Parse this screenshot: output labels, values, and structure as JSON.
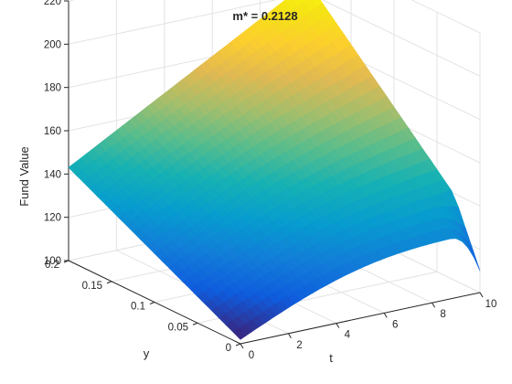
{
  "chart_data": {
    "type": "surface",
    "title": "m* = 0.2128",
    "xlabel": "t",
    "ylabel": "y",
    "zlabel": "Fund Value",
    "xlim": [
      0,
      10
    ],
    "ylim": [
      0,
      0.2
    ],
    "zlim": [
      100,
      220
    ],
    "xticks": [
      0,
      2,
      4,
      6,
      8,
      10
    ],
    "yticks": [
      0,
      0.05,
      0.1,
      0.15,
      0.2
    ],
    "zticks": [
      100,
      120,
      140,
      160,
      180,
      200,
      220
    ],
    "xtick_labels": [
      "0",
      "2",
      "4",
      "6",
      "8",
      "10"
    ],
    "ytick_labels": [
      "0",
      "0.05",
      "0.1",
      "0.15",
      "0.2"
    ],
    "ztick_labels": [
      "100",
      "120",
      "140",
      "160",
      "180",
      "200",
      "220"
    ],
    "grid": true,
    "colormap": "parula",
    "corner_values": {
      "t0_y0": 102,
      "t0_y02": 143,
      "t10_y02": 205,
      "t10_y0": 128
    },
    "edge_dip": {
      "t": 10,
      "y_from": 0.03,
      "y_to": 0,
      "min_value": 110
    }
  }
}
